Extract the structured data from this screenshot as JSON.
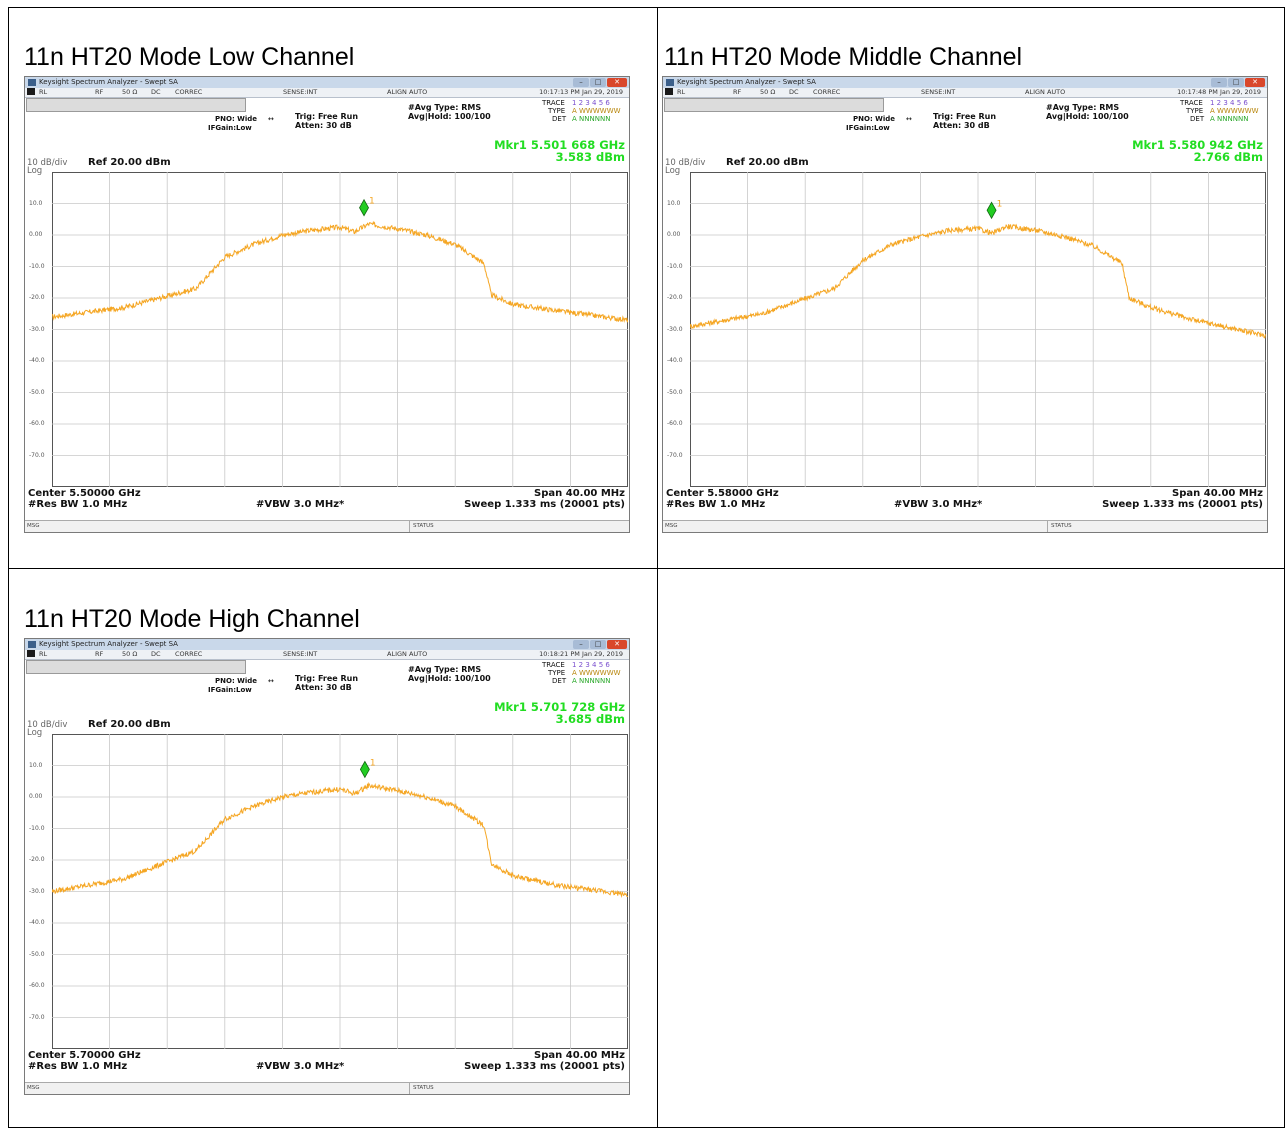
{
  "panels": [
    {
      "title": "11n HT20 Mode Low Channel",
      "window_title": "Keysight Spectrum Analyzer - Swept SA",
      "status": {
        "rl": "RL",
        "rf": "RF",
        "impedance": "50 Ω",
        "dc": "DC",
        "correc": "CORREC",
        "sense": "SENSE:INT",
        "align": "ALIGN AUTO",
        "datetime": "10:17:13 PM Jan 29, 2019"
      },
      "settings": {
        "pno": "PNO: Wide",
        "ifgain": "IFGain:Low",
        "arrow": "↔",
        "trig": "Trig: Free Run",
        "atten": "Atten: 30 dB",
        "avg_type": "#Avg Type: RMS",
        "avg_hold": "Avg|Hold: 100/100"
      },
      "trace_labels": {
        "trace": "TRACE",
        "type": "TYPE",
        "det": "DET",
        "trace_nums": "1 2 3 4 5 6",
        "type_vals": "A WWWWWW",
        "det_vals": "A NNNNNN"
      },
      "marker": {
        "line1": "Mkr1 5.501 668 GHz",
        "line2": "3.583 dBm",
        "label": "1",
        "x": 1.668,
        "y": 3.583
      },
      "scale": {
        "div": "10 dB/div",
        "log": "Log",
        "ref": "Ref 20.00 dBm"
      },
      "footer": {
        "center": "Center 5.50000 GHz",
        "span": "Span 40.00 MHz",
        "rbw": "#Res BW 1.0 MHz",
        "vbw": "#VBW 3.0 MHz*",
        "sweep": "Sweep  1.333 ms (20001 pts)"
      },
      "msgbar": {
        "msg": "MSG",
        "status": "STATUS"
      }
    },
    {
      "title": "11n HT20 Mode Middle Channel",
      "window_title": "Keysight Spectrum Analyzer - Swept SA",
      "status": {
        "rl": "RL",
        "rf": "RF",
        "impedance": "50 Ω",
        "dc": "DC",
        "correc": "CORREC",
        "sense": "SENSE:INT",
        "align": "ALIGN AUTO",
        "datetime": "10:17:48 PM Jan 29, 2019"
      },
      "settings": {
        "pno": "PNO: Wide",
        "ifgain": "IFGain:Low",
        "arrow": "↔",
        "trig": "Trig: Free Run",
        "atten": "Atten: 30 dB",
        "avg_type": "#Avg Type: RMS",
        "avg_hold": "Avg|Hold: 100/100"
      },
      "trace_labels": {
        "trace": "TRACE",
        "type": "TYPE",
        "det": "DET",
        "trace_nums": "1 2 3 4 5 6",
        "type_vals": "A WWWWWW",
        "det_vals": "A NNNNNN"
      },
      "marker": {
        "line1": "Mkr1 5.580 942 GHz",
        "line2": "2.766 dBm",
        "label": "1",
        "x": 0.942,
        "y": 2.766
      },
      "scale": {
        "div": "10 dB/div",
        "log": "Log",
        "ref": "Ref 20.00 dBm"
      },
      "footer": {
        "center": "Center 5.58000 GHz",
        "span": "Span 40.00 MHz",
        "rbw": "#Res BW 1.0 MHz",
        "vbw": "#VBW 3.0 MHz*",
        "sweep": "Sweep  1.333 ms (20001 pts)"
      },
      "msgbar": {
        "msg": "MSG",
        "status": "STATUS"
      }
    },
    {
      "title": "11n HT20 Mode High Channel",
      "window_title": "Keysight Spectrum Analyzer - Swept SA",
      "status": {
        "rl": "RL",
        "rf": "RF",
        "impedance": "50 Ω",
        "dc": "DC",
        "correc": "CORREC",
        "sense": "SENSE:INT",
        "align": "ALIGN AUTO",
        "datetime": "10:18:21 PM Jan 29, 2019"
      },
      "settings": {
        "pno": "PNO: Wide",
        "ifgain": "IFGain:Low",
        "arrow": "↔",
        "trig": "Trig: Free Run",
        "atten": "Atten: 30 dB",
        "avg_type": "#Avg Type: RMS",
        "avg_hold": "Avg|Hold: 100/100"
      },
      "trace_labels": {
        "trace": "TRACE",
        "type": "TYPE",
        "det": "DET",
        "trace_nums": "1 2 3 4 5 6",
        "type_vals": "A WWWWWW",
        "det_vals": "A NNNNNN"
      },
      "marker": {
        "line1": "Mkr1 5.701 728 GHz",
        "line2": "3.685 dBm",
        "label": "1",
        "x": 1.728,
        "y": 3.685
      },
      "scale": {
        "div": "10 dB/div",
        "log": "Log",
        "ref": "Ref 20.00 dBm"
      },
      "footer": {
        "center": "Center 5.70000 GHz",
        "span": "Span 40.00 MHz",
        "rbw": "#Res BW 1.0 MHz",
        "vbw": "#VBW 3.0 MHz*",
        "sweep": "Sweep  1.333 ms (20001 pts)"
      },
      "msgbar": {
        "msg": "MSG",
        "status": "STATUS"
      }
    }
  ],
  "colors": {
    "trace": "#f5a623",
    "marker": "#22cc22",
    "marker_text": "#22dd22",
    "grid": "#c8c8c8",
    "ylabel": "#666666"
  },
  "chart_data": [
    {
      "type": "line",
      "xlim": [
        -20,
        20
      ],
      "ylim": [
        -80,
        20
      ],
      "y_ticks": [
        "10.0",
        "0.00",
        "-10.0",
        "-20.0",
        "-30.0",
        "-40.0",
        "-50.0",
        "-60.0",
        "-70.0"
      ],
      "x": [
        -20,
        -15,
        -10,
        -8,
        -6,
        -4,
        -2,
        0,
        1,
        2,
        4,
        6,
        8,
        10,
        10.5,
        12,
        15,
        20
      ],
      "values": [
        -26,
        -23,
        -17,
        -7,
        -3,
        0,
        1.5,
        2.5,
        1,
        3.5,
        2,
        0,
        -3,
        -9,
        -19,
        -22,
        -24,
        -27
      ]
    },
    {
      "type": "line",
      "xlim": [
        -20,
        20
      ],
      "ylim": [
        -80,
        20
      ],
      "y_ticks": [
        "10.0",
        "0.00",
        "-10.0",
        "-20.0",
        "-30.0",
        "-40.0",
        "-50.0",
        "-60.0",
        "-70.0"
      ],
      "x": [
        -20,
        -15,
        -10,
        -8,
        -6,
        -4,
        -2,
        0,
        1,
        2,
        4,
        6,
        8,
        10,
        10.5,
        12,
        15,
        20
      ],
      "values": [
        -29,
        -25,
        -17,
        -8,
        -3,
        -0.5,
        1.5,
        2,
        0.5,
        2.8,
        1.5,
        -0.5,
        -3.5,
        -9,
        -20,
        -23,
        -27,
        -32
      ]
    },
    {
      "type": "line",
      "xlim": [
        -20,
        20
      ],
      "ylim": [
        -80,
        20
      ],
      "y_ticks": [
        "10.0",
        "0.00",
        "-10.0",
        "-20.0",
        "-30.0",
        "-40.0",
        "-50.0",
        "-60.0",
        "-70.0"
      ],
      "x": [
        -20,
        -15,
        -10,
        -8,
        -6,
        -4,
        -2,
        0,
        1,
        2,
        4,
        6,
        8,
        10,
        10.5,
        12,
        15,
        20
      ],
      "values": [
        -30,
        -26,
        -17,
        -7,
        -3,
        0,
        1.5,
        2.5,
        1,
        3.7,
        2,
        0,
        -3,
        -9,
        -21,
        -25,
        -28,
        -31
      ]
    }
  ]
}
